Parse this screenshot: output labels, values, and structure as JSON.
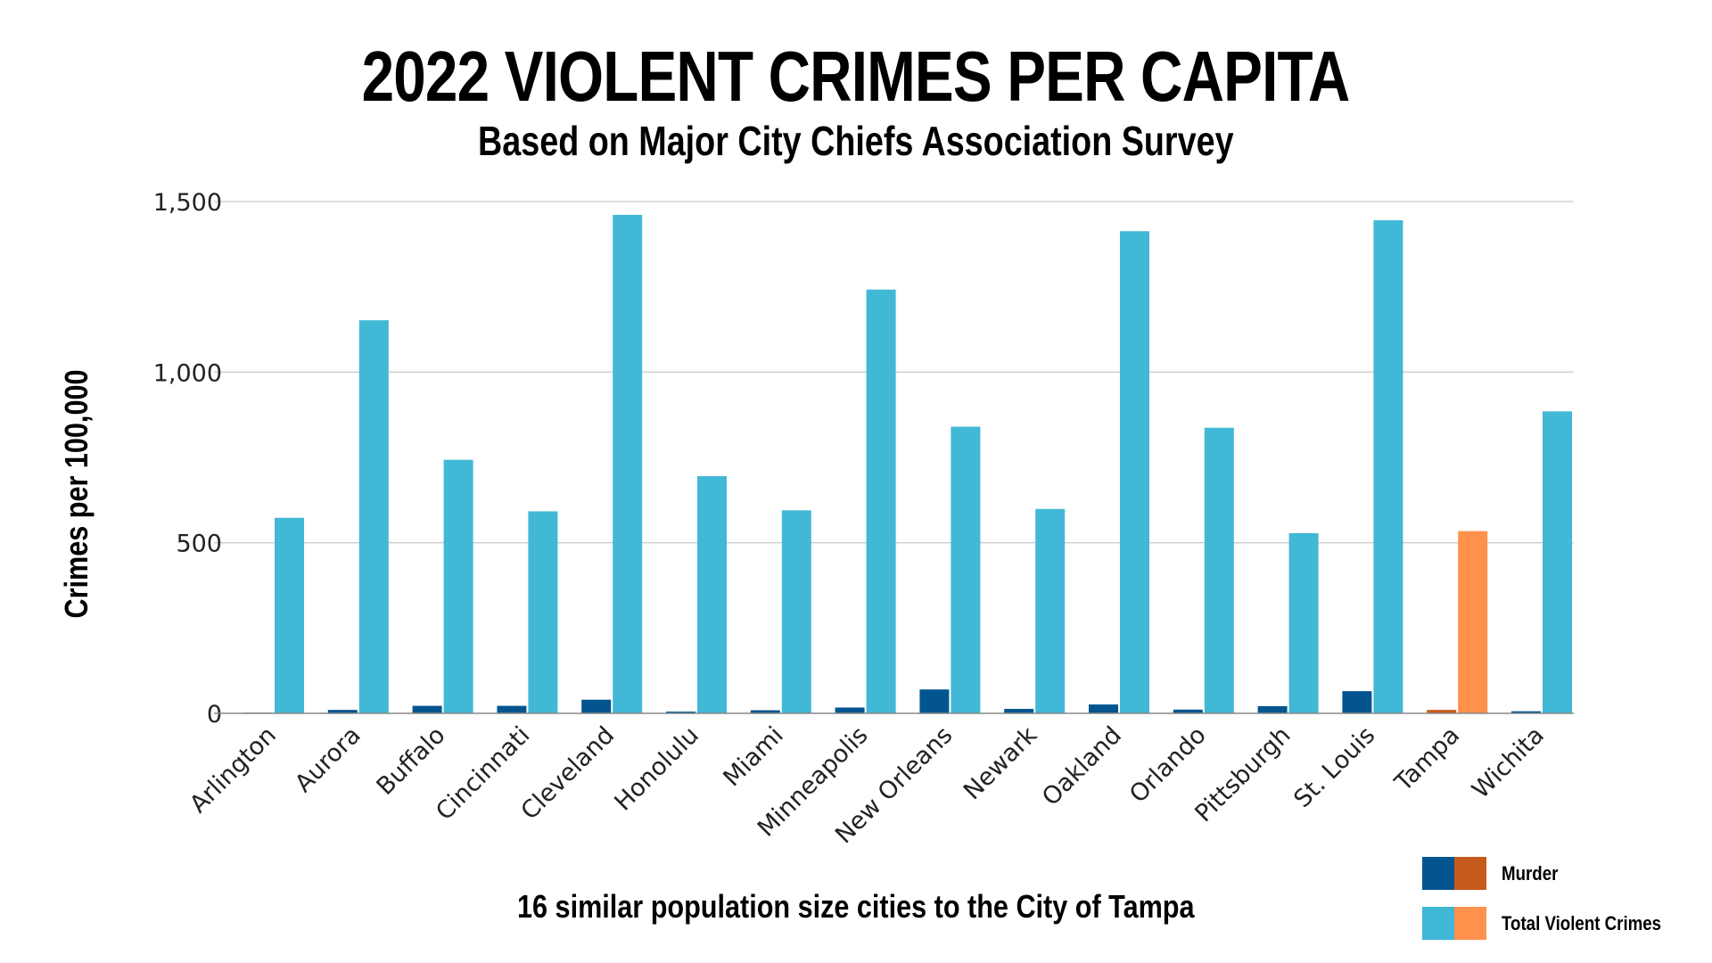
{
  "chart_data": {
    "type": "bar",
    "title": "2022 VIOLENT CRIMES PER CAPITA",
    "subtitle": "Based on Major City Chiefs Association Survey",
    "xlabel": "16 similar population size cities to the City of Tampa",
    "ylabel": "Crimes per 100,000",
    "ylim": [
      0,
      1500
    ],
    "yticks": [
      "0",
      "500",
      "1,000",
      "1,500"
    ],
    "grid": true,
    "legend_position": "bottom-right",
    "categories": [
      "Arlington",
      "Aurora",
      "Buffalo",
      "Cincinnati",
      "Cleveland",
      "Honolulu",
      "Miami",
      "Minneapolis",
      "New Orleans",
      "Newark",
      "Oakland",
      "Orlando",
      "Pittsburgh",
      "St. Louis",
      "Tampa",
      "Wichita"
    ],
    "highlight_category": "Tampa",
    "series": [
      {
        "name": "Murder",
        "color": "#03558f",
        "highlight_color": "#c65a1c",
        "values": [
          2,
          10,
          22,
          22,
          40,
          5,
          9,
          17,
          70,
          13,
          26,
          11,
          21,
          65,
          10,
          6
        ]
      },
      {
        "name": "Total Violent Crimes",
        "color": "#41b8d6",
        "highlight_color": "#ff914d",
        "values": [
          573,
          1152,
          743,
          592,
          1461,
          695,
          595,
          1242,
          840,
          599,
          1413,
          837,
          528,
          1445,
          534,
          885
        ]
      }
    ]
  }
}
